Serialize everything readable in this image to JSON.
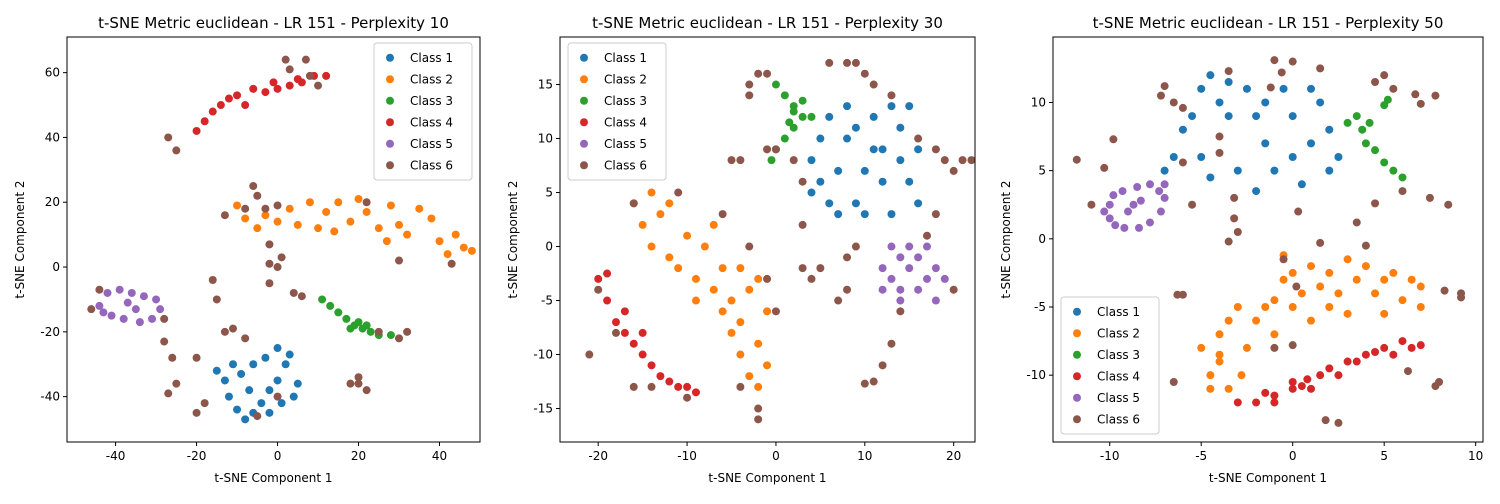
{
  "chart_data": [
    {
      "type": "scatter",
      "title": "t-SNE Metric euclidean - LR 151 - Perplexity 10",
      "xlabel": "t-SNE Component 1",
      "ylabel": "t-SNE Component 2",
      "xlim": [
        -52,
        50
      ],
      "ylim": [
        -54,
        71
      ],
      "xticks": [
        -40,
        -20,
        0,
        20,
        40
      ],
      "yticks": [
        -40,
        -20,
        0,
        20,
        40,
        60
      ],
      "legend": "upper right",
      "series": [
        {
          "name": "Class 1",
          "color": "#1f77b4",
          "x": [
            -15,
            -13,
            -12,
            -10,
            -8,
            -6,
            -4,
            -2,
            0,
            2,
            4,
            3,
            0,
            -3,
            -6,
            -9,
            -7,
            -2,
            1,
            -11,
            5
          ],
          "y": [
            -32,
            -35,
            -40,
            -44,
            -47,
            -45,
            -42,
            -38,
            -35,
            -30,
            -40,
            -27,
            -25,
            -28,
            -30,
            -33,
            -38,
            -45,
            -42,
            -30,
            -36
          ]
        },
        {
          "name": "Class 2",
          "color": "#ff7f0e",
          "x": [
            -10,
            -8,
            -5,
            -3,
            0,
            3,
            5,
            8,
            10,
            12,
            15,
            18,
            20,
            22,
            25,
            27,
            30,
            32,
            35,
            38,
            40,
            42,
            44,
            46,
            48,
            28,
            14
          ],
          "y": [
            19,
            15,
            12,
            16,
            14,
            18,
            13,
            20,
            12,
            17,
            20,
            14,
            21,
            17,
            12,
            8,
            13,
            10,
            18,
            15,
            8,
            4,
            10,
            6,
            5,
            19,
            11
          ]
        },
        {
          "name": "Class 3",
          "color": "#2ca02c",
          "x": [
            11,
            13,
            15,
            17,
            19,
            21,
            23,
            25,
            28,
            20,
            18,
            22
          ],
          "y": [
            -10,
            -12,
            -14,
            -16,
            -18,
            -19,
            -20,
            -21,
            -21,
            -17,
            -19,
            -18
          ]
        },
        {
          "name": "Class 4",
          "color": "#d62728",
          "x": [
            -20,
            -18,
            -16,
            -14,
            -12,
            -10,
            -6,
            -3,
            0,
            3,
            6,
            9,
            12,
            -8,
            5,
            -1
          ],
          "y": [
            42,
            45,
            48,
            50,
            52,
            53,
            55,
            54,
            55,
            56,
            57,
            59,
            59,
            50,
            58,
            57
          ]
        },
        {
          "name": "Class 5",
          "color": "#9467bd",
          "x": [
            -44,
            -42,
            -39,
            -36,
            -33,
            -30,
            -29,
            -31,
            -34,
            -38,
            -41,
            -43,
            -37,
            -35
          ],
          "y": [
            -12,
            -8,
            -7,
            -8,
            -9,
            -10,
            -13,
            -16,
            -17,
            -16,
            -15,
            -14,
            -11,
            -13
          ]
        },
        {
          "name": "Class 6",
          "color": "#8c564b",
          "x": [
            -44,
            -46,
            -28,
            -28,
            -26,
            -25,
            -27,
            -27,
            -25,
            -20,
            -20,
            -18,
            -16,
            -15,
            -13,
            -11,
            -8,
            -6,
            -5,
            -3,
            -2,
            -2,
            0,
            1,
            -5,
            0,
            0,
            4,
            6,
            7,
            2,
            3,
            8,
            10,
            20,
            18,
            20,
            22,
            22,
            32,
            30,
            25,
            30,
            43,
            -13,
            -8,
            -2
          ],
          "y": [
            -7,
            -13,
            -16,
            -23,
            -28,
            -36,
            -39,
            40,
            36,
            -28,
            -45,
            -42,
            -4,
            -10,
            -20,
            -19,
            -22,
            25,
            22,
            18,
            7,
            1,
            0,
            3,
            -46,
            -40,
            19,
            -8,
            -9,
            64,
            64,
            61,
            59,
            56,
            -36,
            -36,
            -34,
            -38,
            20,
            -20,
            -22,
            -20,
            2,
            1,
            16,
            18,
            -5
          ]
        }
      ]
    },
    {
      "type": "scatter",
      "title": "t-SNE Metric euclidean - LR 151 - Perplexity 30",
      "xlabel": "t-SNE Component 1",
      "ylabel": "t-SNE Component 2",
      "xlim": [
        -24.3,
        22.4
      ],
      "ylim": [
        -18.1,
        19.4
      ],
      "xticks": [
        -20,
        -10,
        0,
        10,
        20
      ],
      "yticks": [
        -15,
        -10,
        -5,
        0,
        5,
        10,
        15
      ],
      "legend": "upper left",
      "series": [
        {
          "name": "Class 1",
          "color": "#1f77b4",
          "x": [
            4,
            4,
            5,
            6,
            6,
            7,
            8,
            8,
            9,
            9,
            10,
            10,
            11,
            12,
            12,
            13,
            13,
            14,
            14,
            15,
            15,
            16,
            16,
            5,
            7,
            11
          ],
          "y": [
            5,
            8,
            10,
            12,
            4,
            7,
            10,
            13,
            4,
            11,
            3,
            7,
            12,
            6,
            9,
            13,
            3,
            8,
            11,
            6,
            13,
            4,
            9,
            6,
            3,
            9
          ]
        },
        {
          "name": "Class 2",
          "color": "#ff7f0e",
          "x": [
            -16,
            -15,
            -14,
            -13,
            -14,
            -12,
            -11,
            -10,
            -9,
            -8,
            -7,
            -6,
            -5,
            -4,
            -3,
            -2,
            -1,
            -4,
            -3,
            -2,
            -1,
            -5,
            -6,
            -9,
            -12,
            -7,
            -2,
            -4
          ],
          "y": [
            4,
            2,
            5,
            3,
            0,
            -1,
            -2,
            1,
            -3,
            0,
            -4,
            -2,
            -5,
            -7,
            -4,
            -9,
            -6,
            -10,
            -12,
            -13,
            -11,
            -8,
            -6,
            -5,
            4,
            2,
            -3,
            -2
          ]
        },
        {
          "name": "Class 3",
          "color": "#2ca02c",
          "x": [
            0,
            1,
            2,
            3,
            2,
            1,
            0,
            -0.5,
            2,
            3,
            4,
            1.5
          ],
          "y": [
            15,
            14,
            13,
            12,
            11,
            10,
            9,
            8,
            12.5,
            13.5,
            12,
            11.5
          ]
        },
        {
          "name": "Class 4",
          "color": "#d62728",
          "x": [
            -20,
            -19,
            -18,
            -17,
            -16,
            -15,
            -14,
            -13,
            -12,
            -11,
            -10,
            -9,
            -17,
            -15,
            -19
          ],
          "y": [
            -3,
            -5,
            -7,
            -8,
            -9,
            -10,
            -11,
            -12,
            -12.5,
            -13,
            -13,
            -13.5,
            -6,
            -8,
            -2.5
          ]
        },
        {
          "name": "Class 5",
          "color": "#9467bd",
          "x": [
            12,
            12,
            13,
            13,
            14,
            14,
            15,
            15,
            16,
            16,
            17,
            17,
            18,
            18,
            19,
            14
          ],
          "y": [
            -2,
            -4,
            0,
            -3,
            -1,
            -5,
            -2,
            0,
            -4,
            -1,
            -3,
            0,
            -2,
            -5,
            -3,
            -4
          ]
        },
        {
          "name": "Class 6",
          "color": "#8c564b",
          "x": [
            -21,
            -20,
            -18,
            -16,
            -16,
            -11,
            -6,
            -5,
            -4,
            -3,
            -3,
            -3,
            -2,
            -1,
            -1,
            -2,
            -2,
            -4,
            -1,
            0,
            2,
            3,
            3,
            3,
            5,
            4,
            7,
            8,
            8,
            9,
            6,
            8,
            9,
            10,
            11,
            13,
            12,
            11,
            10,
            13,
            14,
            16,
            18,
            19,
            20,
            21,
            22,
            20,
            17,
            18,
            -10,
            0,
            -14
          ],
          "y": [
            -10,
            -4,
            -8,
            -13,
            4,
            5,
            3,
            8,
            8,
            0,
            15,
            14,
            16,
            16,
            -3,
            -15,
            -16,
            -13,
            9,
            9,
            8,
            6,
            -2,
            2,
            -2,
            -3,
            -5,
            -1,
            -4,
            0,
            17,
            17,
            17,
            16,
            15,
            14,
            -11,
            -12.5,
            -12.7,
            -9,
            -6,
            10,
            9,
            8,
            7,
            8,
            8,
            -4,
            1,
            3,
            -14,
            -6,
            -13
          ]
        }
      ]
    },
    {
      "type": "scatter",
      "title": "t-SNE Metric euclidean - LR 151 - Perplexity 50",
      "xlabel": "t-SNE Component 1",
      "ylabel": "t-SNE Component 2",
      "xlim": [
        -13.1,
        10.4
      ],
      "ylim": [
        -14.9,
        14.8
      ],
      "xticks": [
        -10,
        -5,
        0,
        5,
        10
      ],
      "yticks": [
        -10,
        -5,
        0,
        5,
        10
      ],
      "legend": "lower left",
      "series": [
        {
          "name": "Class 1",
          "color": "#1f77b4",
          "x": [
            -7,
            -6.5,
            -6,
            -5.5,
            -5,
            -4.5,
            -4,
            -3.5,
            -5,
            -4.5,
            -3,
            -2.5,
            -2,
            -1.5,
            -1,
            -0.5,
            0,
            0,
            0.5,
            1,
            1,
            1.5,
            2,
            2,
            2.5,
            -1.5,
            -2,
            -3.5
          ],
          "y": [
            5,
            6,
            8,
            9,
            11,
            12,
            10,
            9,
            6,
            4.5,
            5,
            11,
            9,
            7,
            5,
            11,
            9,
            6,
            4,
            11,
            7,
            10,
            8,
            5,
            6,
            10,
            3.5,
            11.5
          ]
        },
        {
          "name": "Class 2",
          "color": "#ff7f0e",
          "x": [
            -5,
            -4.5,
            -4,
            -4,
            -3.5,
            -3,
            -2.5,
            -2,
            -1.5,
            -1,
            -1,
            -0.5,
            0,
            0,
            0.5,
            1,
            1.5,
            2,
            2,
            2.5,
            3,
            3.5,
            4,
            4.5,
            5,
            5.5,
            6,
            6.5,
            7,
            7,
            -4.5,
            -3.5,
            -2.8,
            -0.5,
            3,
            5,
            -4,
            1
          ],
          "y": [
            -8,
            -10,
            -9,
            -7,
            -6,
            -5,
            -8,
            -6,
            -5,
            -4.5,
            -7,
            -3,
            -5,
            -2.5,
            -4,
            -2,
            -3.5,
            -2.5,
            -5,
            -4,
            -1.5,
            -3,
            -2,
            -4,
            -3,
            -2.5,
            -4.5,
            -3,
            -3.5,
            -5,
            -11,
            -11,
            -10,
            -1.2,
            -5.5,
            -5.5,
            -8.5,
            -6
          ]
        },
        {
          "name": "Class 3",
          "color": "#2ca02c",
          "x": [
            3,
            3.5,
            3.8,
            4,
            4.5,
            5,
            5.2,
            5,
            5.5,
            6,
            4.2
          ],
          "y": [
            8.5,
            9,
            8,
            7,
            6.5,
            9.8,
            10.2,
            5.6,
            5,
            4.5,
            8.5
          ]
        },
        {
          "name": "Class 4",
          "color": "#d62728",
          "x": [
            -3,
            -2,
            -1,
            -1,
            0,
            0,
            0.5,
            1,
            1.5,
            2,
            2.5,
            3,
            3.5,
            4,
            5,
            5.5,
            6,
            6.5,
            7,
            -1.5,
            0.8,
            4.5
          ],
          "y": [
            -12,
            -12,
            -11.5,
            -12,
            -11,
            -10.5,
            -10.8,
            -11,
            -10,
            -9.5,
            -10,
            -9,
            -9,
            -8.5,
            -8,
            -8.5,
            -7.5,
            -8,
            -7.8,
            -11.3,
            -10.3,
            -8.3
          ]
        },
        {
          "name": "Class 5",
          "color": "#9467bd",
          "x": [
            -10,
            -10,
            -9.8,
            -9.3,
            -8.5,
            -7.8,
            -7.3,
            -7,
            -7.2,
            -7.8,
            -8.4,
            -9.2,
            -9.7,
            -8.7,
            -9,
            -8.3,
            -10.3,
            -7
          ],
          "y": [
            1.5,
            2.5,
            3.2,
            3.5,
            3.8,
            4,
            3.5,
            3,
            2,
            1.2,
            0.8,
            0.8,
            1,
            2.5,
            2,
            2.8,
            2,
            4
          ]
        },
        {
          "name": "Class 6",
          "color": "#8c564b",
          "x": [
            -11.8,
            -11,
            -10.3,
            -9.8,
            -7,
            -7.2,
            -6.5,
            -6,
            -6,
            -5.5,
            -6,
            -6.3,
            -6.5,
            -4,
            -4,
            -3.5,
            -3.5,
            -3.2,
            -3.2,
            -3,
            -1,
            -0.6,
            -1.2,
            -0.5,
            0,
            0.2,
            0.3,
            1.5,
            1.5,
            1.8,
            2.5,
            3.5,
            4,
            4.5,
            4.5,
            5,
            5.5,
            6.3,
            6,
            6.7,
            7,
            7.5,
            7.8,
            7.8,
            8,
            8.5,
            8.3,
            9.2,
            9.2,
            -1,
            0
          ],
          "y": [
            5.8,
            2.5,
            5.2,
            7.3,
            11.2,
            10.5,
            10,
            9.6,
            5.6,
            2.5,
            -4.1,
            -4.1,
            -10.5,
            7.5,
            6.3,
            12.3,
            -0.2,
            3,
            1.5,
            0.5,
            13.1,
            12.2,
            11.1,
            -1.5,
            13,
            -3.5,
            2,
            12.5,
            -0.3,
            -13.3,
            -13.5,
            1.2,
            -0.5,
            2.6,
            11.5,
            12,
            11,
            -9.7,
            3.5,
            10.6,
            9.9,
            3,
            10.5,
            -10.8,
            -10.5,
            2.5,
            -3.8,
            -4,
            -4.3,
            -8,
            -7.8
          ]
        }
      ]
    }
  ]
}
